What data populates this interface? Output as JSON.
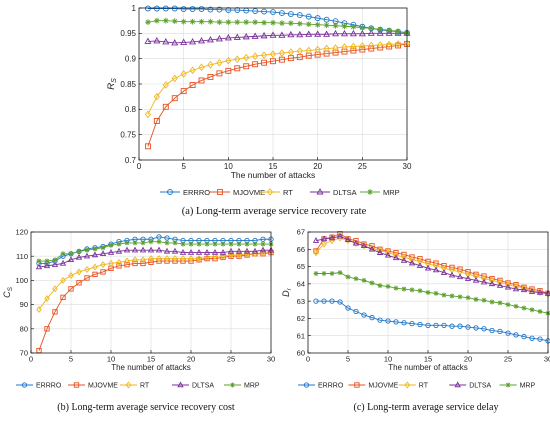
{
  "colors": {
    "ERRRO": "#1f77c8",
    "MJOVME": "#e8501f",
    "RT": "#f2b61b",
    "DLTSA": "#7a2f9a",
    "MRP": "#5aa02c",
    "axis": "#000000",
    "grid": "#dcdcdc"
  },
  "chart_data": [
    {
      "type": "line",
      "caption": "(a) Long-term average service recovery rate",
      "xlabel": "The number of attacks",
      "ylabel": "R",
      "ylabel_sub": "S",
      "xlim": [
        0,
        30
      ],
      "ylim": [
        0.7,
        1
      ],
      "xticks": [
        0,
        5,
        10,
        15,
        20,
        25,
        30
      ],
      "yticks": [
        0.7,
        0.75,
        0.8,
        0.85,
        0.9,
        0.95,
        1
      ],
      "ytick_labels": [
        "0.7",
        "0.75",
        "0.8",
        "0.85",
        "0.9",
        "0.95",
        "1"
      ],
      "grid": true,
      "legend": "bottom",
      "x": [
        1,
        2,
        3,
        4,
        5,
        6,
        7,
        8,
        9,
        10,
        11,
        12,
        13,
        14,
        15,
        16,
        17,
        18,
        19,
        20,
        21,
        22,
        23,
        24,
        25,
        26,
        27,
        28,
        29,
        30
      ],
      "series": [
        {
          "name": "ERRRO",
          "marker": "circle",
          "values": [
            0.999,
            0.999,
            0.999,
            0.999,
            0.998,
            0.998,
            0.998,
            0.997,
            0.997,
            0.996,
            0.996,
            0.995,
            0.994,
            0.993,
            0.992,
            0.99,
            0.988,
            0.986,
            0.983,
            0.98,
            0.977,
            0.974,
            0.97,
            0.967,
            0.963,
            0.96,
            0.957,
            0.955,
            0.953,
            0.951
          ]
        },
        {
          "name": "MJOVME",
          "marker": "square",
          "values": [
            0.727,
            0.777,
            0.805,
            0.822,
            0.836,
            0.848,
            0.857,
            0.864,
            0.871,
            0.876,
            0.881,
            0.885,
            0.889,
            0.892,
            0.895,
            0.898,
            0.901,
            0.903,
            0.906,
            0.908,
            0.91,
            0.912,
            0.914,
            0.916,
            0.918,
            0.92,
            0.922,
            0.924,
            0.926,
            0.929
          ]
        },
        {
          "name": "RT",
          "marker": "diamond",
          "values": [
            0.79,
            0.825,
            0.848,
            0.861,
            0.87,
            0.877,
            0.883,
            0.888,
            0.892,
            0.896,
            0.899,
            0.902,
            0.905,
            0.907,
            0.909,
            0.911,
            0.913,
            0.915,
            0.916,
            0.918,
            0.92,
            0.921,
            0.923,
            0.924,
            0.925,
            0.926,
            0.927,
            0.928,
            0.929,
            0.93
          ]
        },
        {
          "name": "DLTSA",
          "marker": "triangle",
          "values": [
            0.934,
            0.935,
            0.933,
            0.931,
            0.932,
            0.933,
            0.935,
            0.937,
            0.939,
            0.941,
            0.942,
            0.943,
            0.944,
            0.945,
            0.946,
            0.946,
            0.947,
            0.947,
            0.948,
            0.948,
            0.948,
            0.949,
            0.949,
            0.949,
            0.949,
            0.95,
            0.95,
            0.95,
            0.95,
            0.95
          ]
        },
        {
          "name": "MRP",
          "marker": "star",
          "values": [
            0.972,
            0.975,
            0.975,
            0.974,
            0.973,
            0.973,
            0.973,
            0.973,
            0.972,
            0.972,
            0.972,
            0.972,
            0.972,
            0.971,
            0.971,
            0.97,
            0.97,
            0.969,
            0.968,
            0.967,
            0.966,
            0.965,
            0.964,
            0.963,
            0.961,
            0.96,
            0.958,
            0.956,
            0.954,
            0.951
          ]
        }
      ]
    },
    {
      "type": "line",
      "caption": "(b) Long-term average service recovery cost",
      "xlabel": "The number of attacks",
      "ylabel": "C",
      "ylabel_sub": "S",
      "xlim": [
        0,
        30
      ],
      "ylim": [
        70,
        120
      ],
      "xticks": [
        0,
        5,
        10,
        15,
        20,
        25,
        30
      ],
      "yticks": [
        70,
        80,
        90,
        100,
        110,
        120
      ],
      "ytick_labels": [
        "70",
        "80",
        "90",
        "100",
        "110",
        "120"
      ],
      "grid": true,
      "legend": "bottom",
      "x": [
        1,
        2,
        3,
        4,
        5,
        6,
        7,
        8,
        9,
        10,
        11,
        12,
        13,
        14,
        15,
        16,
        17,
        18,
        19,
        20,
        21,
        22,
        23,
        24,
        25,
        26,
        27,
        28,
        29,
        30
      ],
      "series": [
        {
          "name": "ERRRO",
          "marker": "circle",
          "values": [
            107,
            107,
            108,
            110,
            111,
            112,
            113,
            113.5,
            114,
            115,
            116,
            116.5,
            117,
            117,
            117,
            118,
            117.5,
            117,
            116.5,
            116.5,
            116.5,
            116.5,
            116.5,
            116.5,
            116.5,
            116.5,
            116.5,
            116.5,
            117,
            117
          ]
        },
        {
          "name": "MJOVME",
          "marker": "square",
          "values": [
            71,
            80,
            87,
            93,
            96.5,
            99,
            101,
            102.5,
            103.5,
            105,
            106,
            106.5,
            107,
            107,
            107.5,
            108,
            108,
            108,
            108,
            108,
            108.5,
            109,
            109,
            109.5,
            110,
            110,
            110.5,
            111,
            111,
            111.5
          ]
        },
        {
          "name": "RT",
          "marker": "diamond",
          "values": [
            88,
            92.5,
            96.5,
            100,
            102,
            103.5,
            104.5,
            105.5,
            106.5,
            107,
            107.5,
            108,
            108.5,
            108.5,
            109,
            109,
            109,
            109,
            109,
            109,
            109,
            109.5,
            110,
            110,
            110.5,
            110.5,
            111,
            111,
            111.5,
            112
          ]
        },
        {
          "name": "DLTSA",
          "marker": "triangle",
          "values": [
            105.5,
            106,
            106.5,
            107,
            108.5,
            109.5,
            110,
            110.5,
            111,
            111.5,
            112,
            112.5,
            112.5,
            112.5,
            112.5,
            112.5,
            112,
            112,
            111.5,
            111.5,
            111.5,
            111.5,
            111.5,
            111.5,
            112,
            112,
            112,
            112,
            112.5,
            112.5
          ]
        },
        {
          "name": "MRP",
          "marker": "star",
          "values": [
            108,
            108,
            108.5,
            111,
            111,
            112,
            112.5,
            113,
            113.5,
            114.5,
            115,
            115.5,
            115.5,
            115.5,
            116,
            116,
            115.5,
            115.5,
            115,
            115,
            115,
            115,
            115,
            115,
            115,
            115,
            115,
            115,
            115,
            115
          ]
        }
      ]
    },
    {
      "type": "line",
      "caption": "(c) Long-term average service delay",
      "xlabel": "The number of attacks",
      "ylabel": "D",
      "ylabel_sub": "r",
      "xlim": [
        0,
        30
      ],
      "ylim": [
        60,
        67
      ],
      "xticks": [
        0,
        5,
        10,
        15,
        20,
        25,
        30
      ],
      "yticks": [
        60,
        61,
        62,
        63,
        64,
        65,
        66,
        67
      ],
      "ytick_labels": [
        "60",
        "61",
        "62",
        "63",
        "64",
        "65",
        "66",
        "67"
      ],
      "grid": true,
      "legend": "bottom",
      "x": [
        1,
        2,
        3,
        4,
        5,
        6,
        7,
        8,
        9,
        10,
        11,
        12,
        13,
        14,
        15,
        16,
        17,
        18,
        19,
        20,
        21,
        22,
        23,
        24,
        25,
        26,
        27,
        28,
        29,
        30
      ],
      "series": [
        {
          "name": "ERRRO",
          "marker": "circle",
          "values": [
            63,
            63,
            63,
            62.95,
            62.6,
            62.4,
            62.2,
            62.05,
            61.9,
            61.85,
            61.8,
            61.75,
            61.7,
            61.65,
            61.6,
            61.6,
            61.6,
            61.55,
            61.55,
            61.5,
            61.45,
            61.4,
            61.3,
            61.25,
            61.15,
            61.05,
            60.95,
            60.85,
            60.8,
            60.7
          ]
        },
        {
          "name": "MJOVME",
          "marker": "square",
          "values": [
            65.9,
            66.6,
            66.7,
            66.9,
            66.6,
            66.5,
            66.3,
            66.2,
            66,
            65.9,
            65.8,
            65.7,
            65.55,
            65.45,
            65.3,
            65.2,
            65.05,
            64.95,
            64.85,
            64.7,
            64.55,
            64.45,
            64.3,
            64.2,
            64.05,
            63.95,
            63.8,
            63.7,
            63.6,
            63.45
          ]
        },
        {
          "name": "RT",
          "marker": "diamond",
          "values": [
            65.8,
            66.3,
            66.5,
            66.65,
            66.5,
            66.35,
            66.2,
            66.05,
            65.95,
            65.8,
            65.65,
            65.55,
            65.4,
            65.3,
            65.15,
            65.05,
            64.9,
            64.8,
            64.7,
            64.55,
            64.45,
            64.3,
            64.2,
            64.1,
            63.95,
            63.85,
            63.75,
            63.6,
            63.5,
            63.4
          ]
        },
        {
          "name": "DLTSA",
          "marker": "triangle",
          "values": [
            66.5,
            66.6,
            66.65,
            66.75,
            66.55,
            66.35,
            66.2,
            66,
            65.8,
            65.65,
            65.5,
            65.35,
            65.2,
            65.05,
            64.9,
            64.8,
            64.65,
            64.5,
            64.4,
            64.3,
            64.2,
            64.1,
            64,
            63.9,
            63.8,
            63.7,
            63.65,
            63.55,
            63.5,
            63.45
          ]
        },
        {
          "name": "MRP",
          "marker": "star",
          "values": [
            64.6,
            64.6,
            64.6,
            64.65,
            64.4,
            64.3,
            64.2,
            64.05,
            63.9,
            63.85,
            63.75,
            63.7,
            63.65,
            63.6,
            63.5,
            63.45,
            63.35,
            63.3,
            63.25,
            63.2,
            63.1,
            63.05,
            62.95,
            62.9,
            62.8,
            62.7,
            62.6,
            62.5,
            62.4,
            62.3
          ]
        }
      ]
    }
  ]
}
